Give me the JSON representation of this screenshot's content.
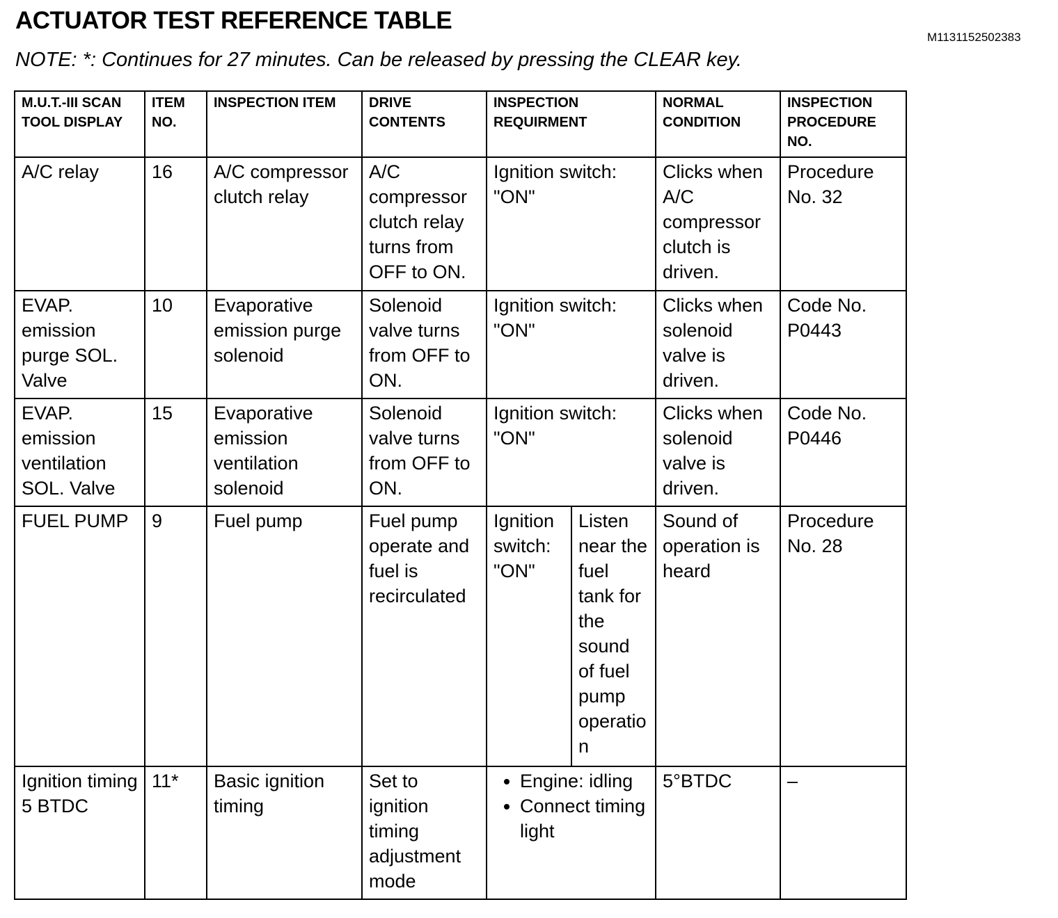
{
  "title": "ACTUATOR TEST REFERENCE TABLE",
  "doc_id": "M1131152502383",
  "note": "NOTE: *: Continues for 27 minutes. Can be released by pressing the CLEAR key.",
  "headers": {
    "scan_tool_display": "M.U.T.-III SCAN TOOL DISPLAY",
    "item_no": "ITEM NO.",
    "inspection_item": "INSPECTION ITEM",
    "drive_contents": "DRIVE CONTENTS",
    "inspection_requirement": "INSPECTION REQUIRMENT",
    "normal_condition": "NORMAL CONDITION",
    "inspection_procedure": "INSPECTION PROCEDURE NO."
  },
  "rows": [
    {
      "display": "A/C relay",
      "item": "16",
      "inspection_item": "A/C compressor clutch relay",
      "drive": "A/C compressor clutch relay turns from OFF to ON.",
      "requirement": "Ignition switch: \"ON\"",
      "normal": "Clicks when A/C compressor clutch is driven.",
      "procedure": "Procedure No. 32"
    },
    {
      "display": "EVAP. emission purge SOL. Valve",
      "item": "10",
      "inspection_item": "Evaporative emission purge solenoid",
      "drive": "Solenoid valve turns from OFF to ON.",
      "requirement": "Ignition switch: \"ON\"",
      "normal": "Clicks when solenoid valve is driven.",
      "procedure": "Code No. P0443"
    },
    {
      "display": "EVAP. emission ventilation SOL. Valve",
      "item": "15",
      "inspection_item": "Evaporative emission ventilation solenoid",
      "drive": "Solenoid valve turns from OFF to ON.",
      "requirement": "Ignition switch: \"ON\"",
      "normal": "Clicks when solenoid valve is driven.",
      "procedure": "Code No. P0446"
    },
    {
      "display": "FUEL PUMP",
      "item": "9",
      "inspection_item": "Fuel pump",
      "drive": "Fuel pump operate and fuel is recirculated",
      "requirement": "Ignition switch: \"ON\"",
      "requirement_detail": "Listen near the fuel tank for the sound of fuel pump operation",
      "normal": "Sound of operation is heard",
      "procedure": "Procedure No. 28"
    },
    {
      "display": "Ignition timing 5 BTDC",
      "item": "11*",
      "inspection_item": "Basic ignition timing",
      "drive": "Set to ignition timing adjustment mode",
      "requirement_list": [
        "Engine: idling",
        "Connect timing light"
      ],
      "normal": "5°BTDC",
      "procedure": "–"
    }
  ]
}
